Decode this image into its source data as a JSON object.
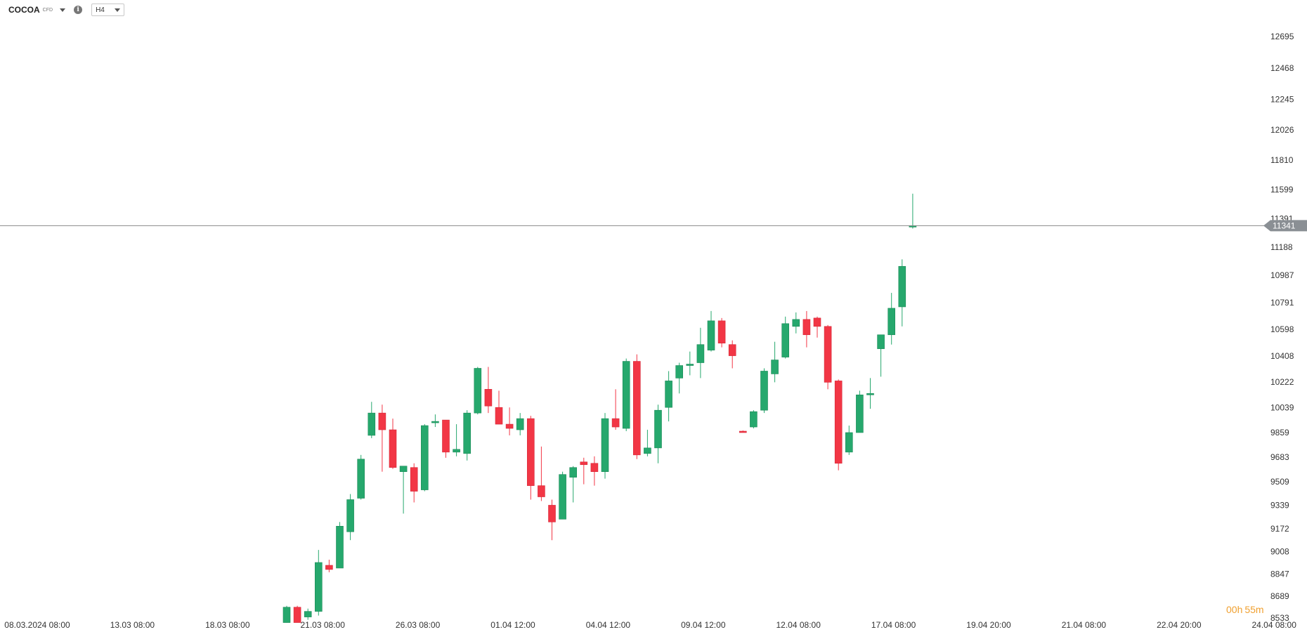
{
  "toolbar": {
    "symbol": "COCOA",
    "symbol_type": "CFD",
    "info_icon": "i",
    "timeframe": "H4"
  },
  "countdown": {
    "hours": "00h",
    "minutes": "55m"
  },
  "chart_data": {
    "type": "candlestick",
    "interval": "H4",
    "current_price": 11341,
    "y_ticks": [
      12695,
      12468,
      12245,
      12026,
      11810,
      11599,
      11391,
      11188,
      10987,
      10791,
      10598,
      10408,
      10222,
      10039,
      9859,
      9683,
      9509,
      9339,
      9172,
      9008,
      8847,
      8689,
      8533
    ],
    "ylim": [
      8533,
      12695
    ],
    "x_tick_labels": [
      "08.03.2024 08:00",
      "13.03 08:00",
      "18.03 08:00",
      "21.03 08:00",
      "26.03 08:00",
      "01.04 12:00",
      "04.04 12:00",
      "09.04 12:00",
      "12.04 08:00",
      "17.04 08:00",
      "19.04 20:00",
      "21.04 08:00",
      "22.04 20:00",
      "24.04 08:00"
    ],
    "colors": {
      "up": "#26a86d",
      "down": "#f23645",
      "price_line": "#888888",
      "price_label_bg": "#8a8f94",
      "countdown": "#f0a030"
    },
    "candles": [
      {
        "o": 8500,
        "h": 8620,
        "l": 8500,
        "c": 8610
      },
      {
        "o": 8610,
        "h": 8620,
        "l": 8500,
        "c": 8500
      },
      {
        "o": 8540,
        "h": 8600,
        "l": 8520,
        "c": 8580
      },
      {
        "o": 8580,
        "h": 9020,
        "l": 8550,
        "c": 8930
      },
      {
        "o": 8910,
        "h": 8950,
        "l": 8860,
        "c": 8880
      },
      {
        "o": 8890,
        "h": 9220,
        "l": 8890,
        "c": 9190
      },
      {
        "o": 9150,
        "h": 9420,
        "l": 9090,
        "c": 9380
      },
      {
        "o": 9390,
        "h": 9700,
        "l": 9380,
        "c": 9670
      },
      {
        "o": 9840,
        "h": 10080,
        "l": 9820,
        "c": 10000
      },
      {
        "o": 10000,
        "h": 10060,
        "l": 9580,
        "c": 9880
      },
      {
        "o": 9880,
        "h": 9960,
        "l": 9600,
        "c": 9610
      },
      {
        "o": 9580,
        "h": 9620,
        "l": 9280,
        "c": 9620
      },
      {
        "o": 9610,
        "h": 9640,
        "l": 9360,
        "c": 9440
      },
      {
        "o": 9450,
        "h": 9920,
        "l": 9440,
        "c": 9910
      },
      {
        "o": 9930,
        "h": 9990,
        "l": 9900,
        "c": 9940
      },
      {
        "o": 9950,
        "h": 9950,
        "l": 9680,
        "c": 9720
      },
      {
        "o": 9720,
        "h": 9920,
        "l": 9690,
        "c": 9740
      },
      {
        "o": 9710,
        "h": 10020,
        "l": 9660,
        "c": 10000
      },
      {
        "o": 10000,
        "h": 10330,
        "l": 9990,
        "c": 10320
      },
      {
        "o": 10170,
        "h": 10330,
        "l": 10000,
        "c": 10050
      },
      {
        "o": 10040,
        "h": 10160,
        "l": 9920,
        "c": 9920
      },
      {
        "o": 9920,
        "h": 10040,
        "l": 9840,
        "c": 9890
      },
      {
        "o": 9880,
        "h": 10000,
        "l": 9840,
        "c": 9960
      },
      {
        "o": 9960,
        "h": 9980,
        "l": 9380,
        "c": 9480
      },
      {
        "o": 9480,
        "h": 9760,
        "l": 9370,
        "c": 9400
      },
      {
        "o": 9340,
        "h": 9380,
        "l": 9090,
        "c": 9220
      },
      {
        "o": 9240,
        "h": 9580,
        "l": 9240,
        "c": 9560
      },
      {
        "o": 9540,
        "h": 9620,
        "l": 9360,
        "c": 9610
      },
      {
        "o": 9650,
        "h": 9680,
        "l": 9490,
        "c": 9630
      },
      {
        "o": 9640,
        "h": 9690,
        "l": 9480,
        "c": 9580
      },
      {
        "o": 9580,
        "h": 10000,
        "l": 9530,
        "c": 9960
      },
      {
        "o": 9960,
        "h": 10170,
        "l": 9880,
        "c": 9900
      },
      {
        "o": 9890,
        "h": 10390,
        "l": 9870,
        "c": 10370
      },
      {
        "o": 10370,
        "h": 10420,
        "l": 9670,
        "c": 9700
      },
      {
        "o": 9710,
        "h": 9880,
        "l": 9690,
        "c": 9750
      },
      {
        "o": 9750,
        "h": 10060,
        "l": 9640,
        "c": 10020
      },
      {
        "o": 10040,
        "h": 10300,
        "l": 9940,
        "c": 10230
      },
      {
        "o": 10250,
        "h": 10360,
        "l": 10140,
        "c": 10340
      },
      {
        "o": 10340,
        "h": 10440,
        "l": 10270,
        "c": 10350
      },
      {
        "o": 10360,
        "h": 10610,
        "l": 10250,
        "c": 10490
      },
      {
        "o": 10450,
        "h": 10730,
        "l": 10440,
        "c": 10660
      },
      {
        "o": 10660,
        "h": 10680,
        "l": 10470,
        "c": 10500
      },
      {
        "o": 10490,
        "h": 10520,
        "l": 10320,
        "c": 10410
      },
      {
        "o": 9870,
        "h": 9875,
        "l": 9865,
        "c": 9860
      },
      {
        "o": 9900,
        "h": 10020,
        "l": 9890,
        "c": 10010
      },
      {
        "o": 10020,
        "h": 10320,
        "l": 10000,
        "c": 10300
      },
      {
        "o": 10280,
        "h": 10510,
        "l": 10220,
        "c": 10380
      },
      {
        "o": 10400,
        "h": 10690,
        "l": 10390,
        "c": 10640
      },
      {
        "o": 10620,
        "h": 10720,
        "l": 10570,
        "c": 10670
      },
      {
        "o": 10670,
        "h": 10730,
        "l": 10470,
        "c": 10560
      },
      {
        "o": 10680,
        "h": 10690,
        "l": 10540,
        "c": 10620
      },
      {
        "o": 10620,
        "h": 10630,
        "l": 10170,
        "c": 10220
      },
      {
        "o": 10230,
        "h": 10240,
        "l": 9590,
        "c": 9640
      },
      {
        "o": 9720,
        "h": 9910,
        "l": 9700,
        "c": 9860
      },
      {
        "o": 9860,
        "h": 10160,
        "l": 9860,
        "c": 10130
      },
      {
        "o": 10130,
        "h": 10250,
        "l": 10030,
        "c": 10140
      },
      {
        "o": 10460,
        "h": 10560,
        "l": 10260,
        "c": 10560
      },
      {
        "o": 10560,
        "h": 10860,
        "l": 10490,
        "c": 10750
      },
      {
        "o": 10760,
        "h": 11100,
        "l": 10620,
        "c": 11050
      },
      {
        "o": 11341,
        "h": 11570,
        "l": 11320,
        "c": 11341
      }
    ]
  }
}
